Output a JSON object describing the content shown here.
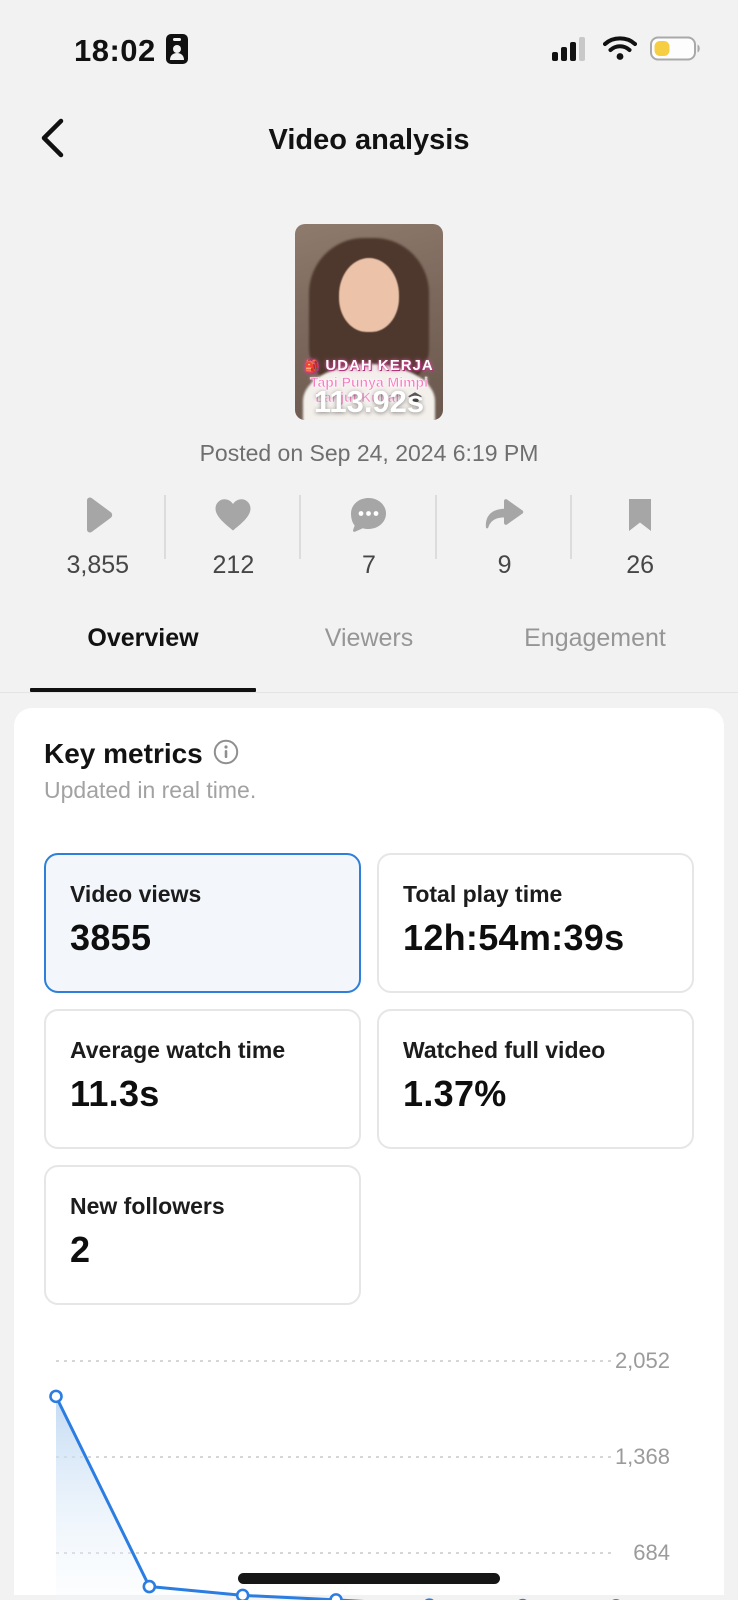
{
  "status_bar": {
    "time": "18:02"
  },
  "header": {
    "title": "Video analysis"
  },
  "video": {
    "caption_line1": "UDAH KERJA",
    "caption_line2": "Tapi Punya Mimpi",
    "caption_line3": "Lanjut Kuliah",
    "duration": "113.92s",
    "posted": "Posted on Sep 24, 2024 6:19 PM"
  },
  "stats": [
    {
      "name": "plays",
      "value": "3,855"
    },
    {
      "name": "likes",
      "value": "212"
    },
    {
      "name": "comments",
      "value": "7"
    },
    {
      "name": "shares",
      "value": "9"
    },
    {
      "name": "bookmarks",
      "value": "26"
    }
  ],
  "tabs": [
    {
      "label": "Overview",
      "active": true
    },
    {
      "label": "Viewers",
      "active": false
    },
    {
      "label": "Engagement",
      "active": false
    }
  ],
  "key_metrics": {
    "title": "Key metrics",
    "subtitle": "Updated in real time.",
    "cards": [
      {
        "label": "Video views",
        "value": "3855",
        "selected": true
      },
      {
        "label": "Total play time",
        "value": "12h:54m:39s",
        "selected": false
      },
      {
        "label": "Average watch time",
        "value": "11.3s",
        "selected": false
      },
      {
        "label": "Watched full video",
        "value": "1.37%",
        "selected": false
      },
      {
        "label": "New followers",
        "value": "2",
        "selected": false
      }
    ]
  },
  "chart_data": {
    "type": "area",
    "x": [
      1,
      2,
      3,
      4,
      5,
      6,
      7
    ],
    "values": [
      1800,
      445,
      382,
      350,
      312,
      310,
      308
    ],
    "y_ticks": [
      2052,
      1368,
      684
    ],
    "y_tick_labels": [
      "2,052",
      "1,368",
      "684"
    ],
    "ylim": [
      0,
      2052
    ],
    "x_axis_visible": false,
    "grid": "dashed horizontal",
    "legend": "none",
    "line_color": "#2b7de1",
    "marker": "open-circle",
    "area_fill_top": "#b9d5f1",
    "area_fill_bottom": "#ffffff"
  },
  "colors": {
    "accent_blue": "#2d7fd9",
    "selected_card_bg": "#f3f7fc",
    "battery_yellow": "#f6ce44",
    "page_bg": "#f2f2f3",
    "icon_gray": "#a6a6a6",
    "tick_label_gray": "#9b9b9b"
  }
}
